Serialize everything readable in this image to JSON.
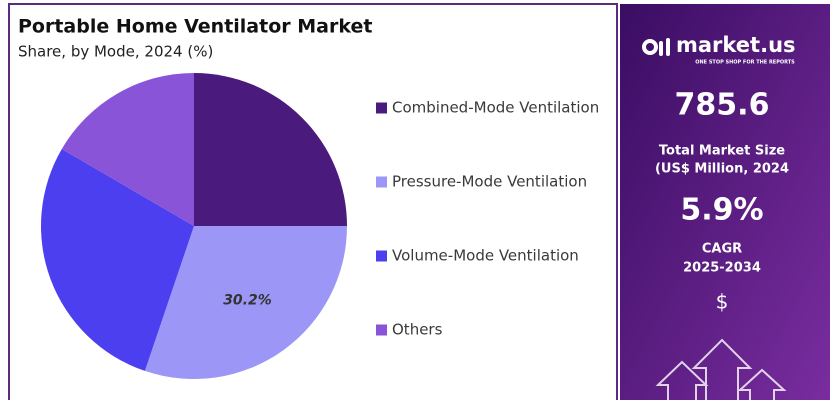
{
  "chart_data": {
    "type": "pie",
    "title": "Portable Home Ventilator Market",
    "subtitle": "Share, by Mode, 2024 (%)",
    "categories": [
      "Combined-Mode Ventilation",
      "Pressure-Mode Ventilation",
      "Volume-Mode Ventilation",
      "Others"
    ],
    "values": [
      25,
      30.2,
      28.2,
      16.6
    ],
    "value_labels": [
      null,
      "30.2%",
      null,
      null
    ],
    "colors": [
      "#4a1a7c",
      "#9c97f6",
      "#4b3ff0",
      "#8a54d8"
    ]
  },
  "panel": {
    "brand": "market.us",
    "tagline": "ONE STOP SHOP FOR THE REPORTS",
    "market_size": "785.6",
    "market_size_label": [
      "Total Market Size",
      "(US$ Million, 2024"
    ],
    "cagr": "5.9%",
    "cagr_label": [
      "CAGR",
      "2025-2034"
    ],
    "currency": "$"
  }
}
